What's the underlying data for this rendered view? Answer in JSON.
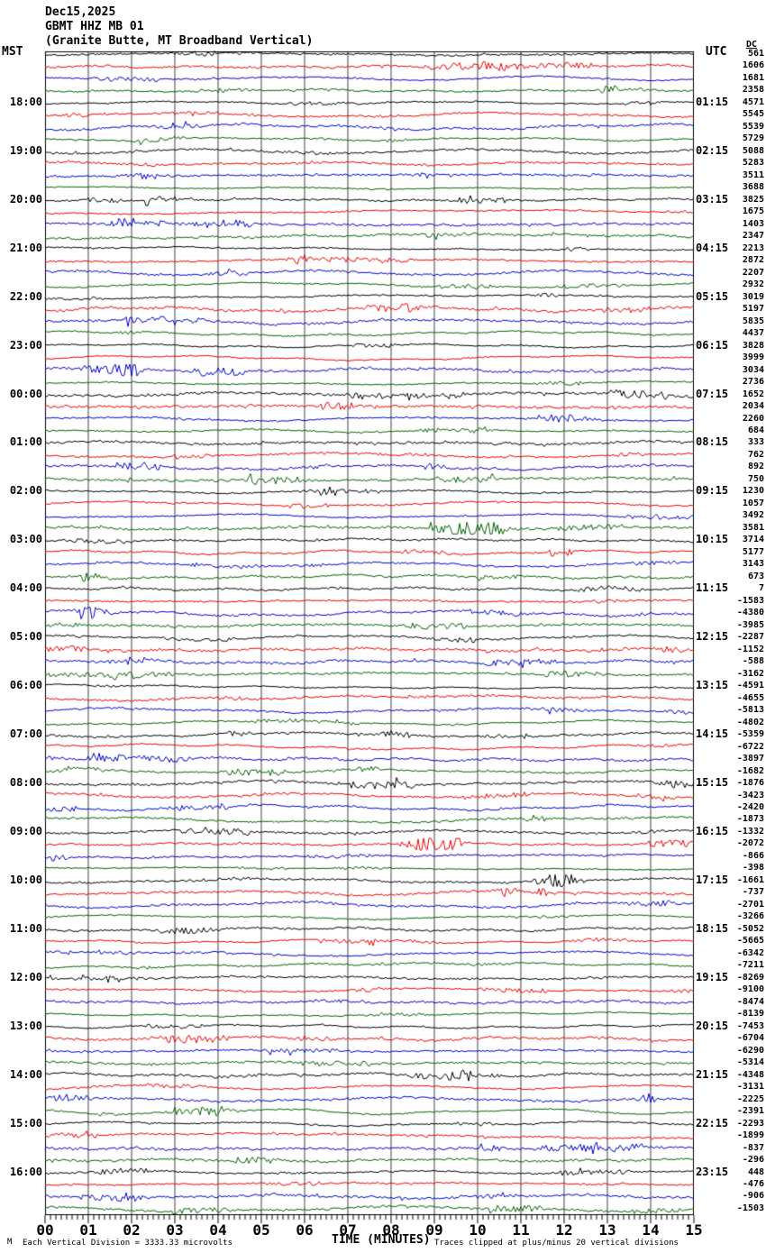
{
  "chart_data": {
    "type": "line",
    "title": "Dec15,2025",
    "station": "GBMT HHZ MB 01",
    "station_description": "(Granite Butte, MT Broadband Vertical)",
    "left_time_zone": "MST",
    "right_time_zone": "UTC",
    "dc_column_header": "DC",
    "corner_mark": "M",
    "x_axis": {
      "title": "TIME (MINUTES)",
      "tick_labels": [
        "00",
        "01",
        "02",
        "03",
        "04",
        "05",
        "06",
        "07",
        "08",
        "09",
        "10",
        "11",
        "12",
        "13",
        "14",
        "15"
      ],
      "minor_ticks_per_major": 8,
      "range_minutes": [
        0,
        15
      ]
    },
    "row_duration_minutes": 15,
    "rows_per_hour": 4,
    "trace_color_cycle": [
      "#000000",
      "#ee0000",
      "#0000cc",
      "#006400"
    ],
    "grid_color": "#808080",
    "notes": {
      "scale": "Each Vertical Division = 3333.33 microvolts",
      "clip": "Traces clipped at plus/minus 20 vertical divisions"
    },
    "rows": [
      {
        "mst": "",
        "utc": "",
        "dc": 561
      },
      {
        "mst": "",
        "utc": "",
        "dc": 1606
      },
      {
        "mst": "",
        "utc": "",
        "dc": 1681
      },
      {
        "mst": "",
        "utc": "",
        "dc": 2358
      },
      {
        "mst": "18:00",
        "utc": "01:15",
        "dc": 4571
      },
      {
        "mst": "",
        "utc": "",
        "dc": 5545
      },
      {
        "mst": "",
        "utc": "",
        "dc": 5539
      },
      {
        "mst": "",
        "utc": "",
        "dc": 5729
      },
      {
        "mst": "19:00",
        "utc": "02:15",
        "dc": 5088
      },
      {
        "mst": "",
        "utc": "",
        "dc": 5283
      },
      {
        "mst": "",
        "utc": "",
        "dc": 3511
      },
      {
        "mst": "",
        "utc": "",
        "dc": 3688
      },
      {
        "mst": "20:00",
        "utc": "03:15",
        "dc": 3825
      },
      {
        "mst": "",
        "utc": "",
        "dc": 1675
      },
      {
        "mst": "",
        "utc": "",
        "dc": 1403
      },
      {
        "mst": "",
        "utc": "",
        "dc": 2347
      },
      {
        "mst": "21:00",
        "utc": "04:15",
        "dc": 2213
      },
      {
        "mst": "",
        "utc": "",
        "dc": 2872
      },
      {
        "mst": "",
        "utc": "",
        "dc": 2207
      },
      {
        "mst": "",
        "utc": "",
        "dc": 2932
      },
      {
        "mst": "22:00",
        "utc": "05:15",
        "dc": 3019
      },
      {
        "mst": "",
        "utc": "",
        "dc": 5197
      },
      {
        "mst": "",
        "utc": "",
        "dc": 5835
      },
      {
        "mst": "",
        "utc": "",
        "dc": 4437
      },
      {
        "mst": "23:00",
        "utc": "06:15",
        "dc": 3828
      },
      {
        "mst": "",
        "utc": "",
        "dc": 3999
      },
      {
        "mst": "",
        "utc": "",
        "dc": 3034
      },
      {
        "mst": "",
        "utc": "",
        "dc": 2736
      },
      {
        "mst": "00:00",
        "utc": "07:15",
        "dc": 1652
      },
      {
        "mst": "",
        "utc": "",
        "dc": 2034
      },
      {
        "mst": "",
        "utc": "",
        "dc": 2260
      },
      {
        "mst": "",
        "utc": "",
        "dc": 684
      },
      {
        "mst": "01:00",
        "utc": "08:15",
        "dc": 333
      },
      {
        "mst": "",
        "utc": "",
        "dc": 762
      },
      {
        "mst": "",
        "utc": "",
        "dc": 892
      },
      {
        "mst": "",
        "utc": "",
        "dc": 750
      },
      {
        "mst": "02:00",
        "utc": "09:15",
        "dc": 1230
      },
      {
        "mst": "",
        "utc": "",
        "dc": 1057
      },
      {
        "mst": "",
        "utc": "",
        "dc": 3492
      },
      {
        "mst": "",
        "utc": "",
        "dc": 3581
      },
      {
        "mst": "03:00",
        "utc": "10:15",
        "dc": 3714
      },
      {
        "mst": "",
        "utc": "",
        "dc": 5177
      },
      {
        "mst": "",
        "utc": "",
        "dc": 3143
      },
      {
        "mst": "",
        "utc": "",
        "dc": 673
      },
      {
        "mst": "04:00",
        "utc": "11:15",
        "dc": 7
      },
      {
        "mst": "",
        "utc": "",
        "dc": -1583
      },
      {
        "mst": "",
        "utc": "",
        "dc": -4380
      },
      {
        "mst": "",
        "utc": "",
        "dc": -3985
      },
      {
        "mst": "05:00",
        "utc": "12:15",
        "dc": -2287
      },
      {
        "mst": "",
        "utc": "",
        "dc": -1152
      },
      {
        "mst": "",
        "utc": "",
        "dc": -588
      },
      {
        "mst": "",
        "utc": "",
        "dc": -3162
      },
      {
        "mst": "06:00",
        "utc": "13:15",
        "dc": -4591
      },
      {
        "mst": "",
        "utc": "",
        "dc": -4655
      },
      {
        "mst": "",
        "utc": "",
        "dc": -5813
      },
      {
        "mst": "",
        "utc": "",
        "dc": -4802
      },
      {
        "mst": "07:00",
        "utc": "14:15",
        "dc": -5359
      },
      {
        "mst": "",
        "utc": "",
        "dc": -6722
      },
      {
        "mst": "",
        "utc": "",
        "dc": -3897
      },
      {
        "mst": "",
        "utc": "",
        "dc": -1682
      },
      {
        "mst": "08:00",
        "utc": "15:15",
        "dc": -1876
      },
      {
        "mst": "",
        "utc": "",
        "dc": -3423
      },
      {
        "mst": "",
        "utc": "",
        "dc": -2420
      },
      {
        "mst": "",
        "utc": "",
        "dc": -1873
      },
      {
        "mst": "09:00",
        "utc": "16:15",
        "dc": -1332
      },
      {
        "mst": "",
        "utc": "",
        "dc": -2072
      },
      {
        "mst": "",
        "utc": "",
        "dc": -866
      },
      {
        "mst": "",
        "utc": "",
        "dc": -398
      },
      {
        "mst": "10:00",
        "utc": "17:15",
        "dc": -1661
      },
      {
        "mst": "",
        "utc": "",
        "dc": -737
      },
      {
        "mst": "",
        "utc": "",
        "dc": -2701
      },
      {
        "mst": "",
        "utc": "",
        "dc": -3266
      },
      {
        "mst": "11:00",
        "utc": "18:15",
        "dc": -5052
      },
      {
        "mst": "",
        "utc": "",
        "dc": -5665
      },
      {
        "mst": "",
        "utc": "",
        "dc": -6342
      },
      {
        "mst": "",
        "utc": "",
        "dc": -7211
      },
      {
        "mst": "12:00",
        "utc": "19:15",
        "dc": -8269
      },
      {
        "mst": "",
        "utc": "",
        "dc": -9100
      },
      {
        "mst": "",
        "utc": "",
        "dc": -8474
      },
      {
        "mst": "",
        "utc": "",
        "dc": -8139
      },
      {
        "mst": "13:00",
        "utc": "20:15",
        "dc": -7453
      },
      {
        "mst": "",
        "utc": "",
        "dc": -6704
      },
      {
        "mst": "",
        "utc": "",
        "dc": -6290
      },
      {
        "mst": "",
        "utc": "",
        "dc": -5314
      },
      {
        "mst": "14:00",
        "utc": "21:15",
        "dc": -4348
      },
      {
        "mst": "",
        "utc": "",
        "dc": -3131
      },
      {
        "mst": "",
        "utc": "",
        "dc": -2225
      },
      {
        "mst": "",
        "utc": "",
        "dc": -2391
      },
      {
        "mst": "15:00",
        "utc": "22:15",
        "dc": -2293
      },
      {
        "mst": "",
        "utc": "",
        "dc": -1899
      },
      {
        "mst": "",
        "utc": "",
        "dc": -837
      },
      {
        "mst": "",
        "utc": "",
        "dc": -296
      },
      {
        "mst": "16:00",
        "utc": "23:15",
        "dc": 448
      },
      {
        "mst": "",
        "utc": "",
        "dc": -476
      },
      {
        "mst": "",
        "utc": "",
        "dc": -906
      },
      {
        "mst": "",
        "utc": "",
        "dc": -1503
      }
    ]
  }
}
